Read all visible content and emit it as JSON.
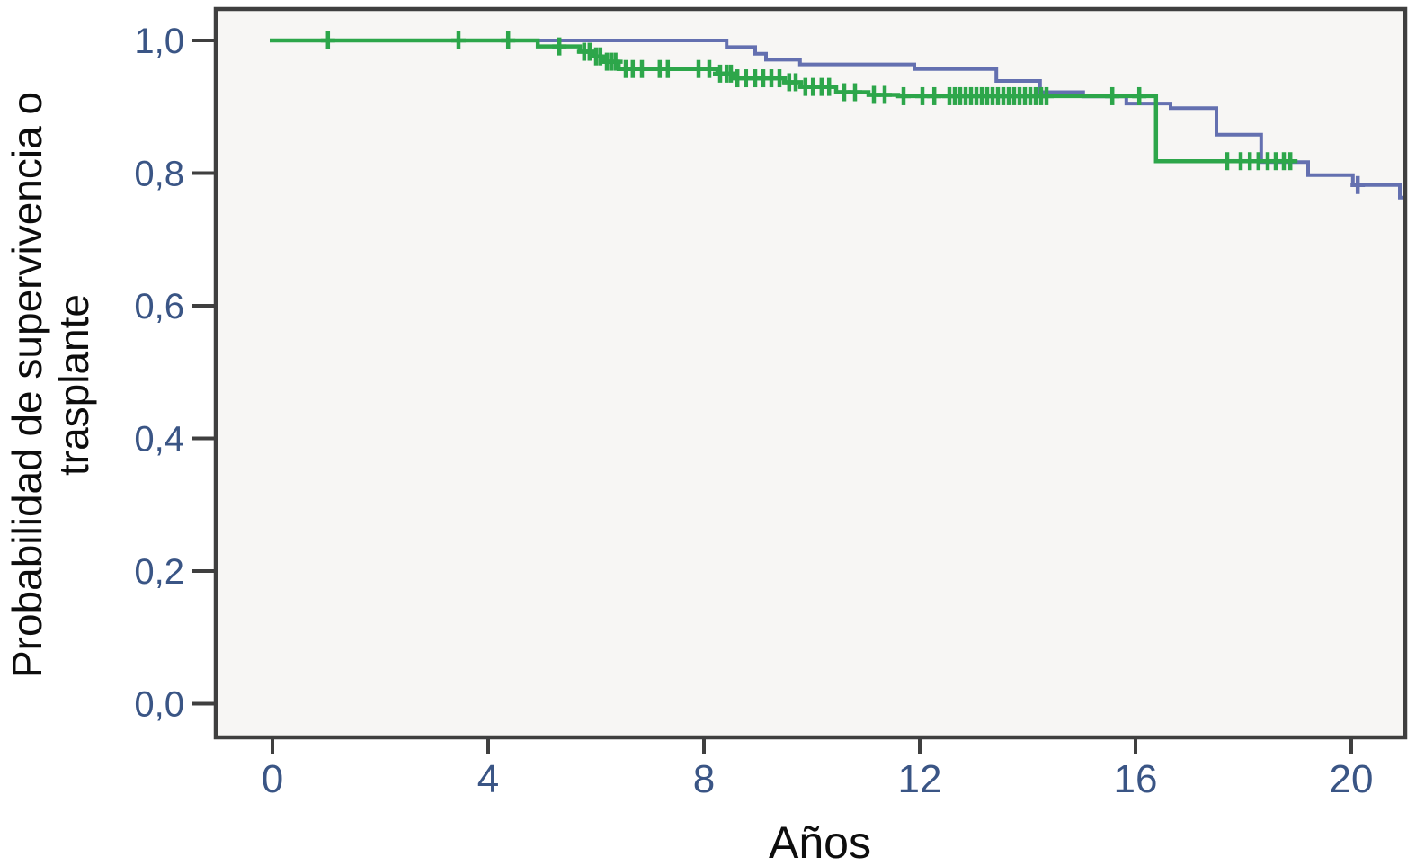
{
  "figure": {
    "background": "#ffffff",
    "plot_background": "#f7f6f4",
    "border_color": "#3f3f3f",
    "tick_label_color": "#3a5585",
    "axis_title_color": "#0d0d0d"
  },
  "axis_titles": {
    "y_line1": "Probabilidad de supervivencia o",
    "y_line2": "trasplante",
    "x": "Años"
  },
  "chart_data": {
    "type": "line",
    "subtype": "kaplan-meier-step-survival",
    "title": "",
    "xlabel": "Años",
    "ylabel": "Probabilidad de supervivencia o trasplante",
    "xlim": [
      -1.08,
      21.06
    ],
    "ylim": [
      -0.05,
      1.05
    ],
    "grid": false,
    "legend": "none",
    "xticks": [
      {
        "v": 0,
        "label": "0"
      },
      {
        "v": 4,
        "label": "4"
      },
      {
        "v": 8,
        "label": "8"
      },
      {
        "v": 12,
        "label": "12"
      },
      {
        "v": 16,
        "label": "16"
      },
      {
        "v": 20,
        "label": "20"
      }
    ],
    "yticks": [
      {
        "v": 0.0,
        "label": "0,0"
      },
      {
        "v": 0.2,
        "label": "0,2"
      },
      {
        "v": 0.4,
        "label": "0,4"
      },
      {
        "v": 0.6,
        "label": "0,6"
      },
      {
        "v": 0.8,
        "label": "0,8"
      },
      {
        "v": 1.0,
        "label": "1,0"
      }
    ],
    "series": [
      {
        "name": "blue-group",
        "color": "#6470b0",
        "stroke_width": 4,
        "end_x": 21.05,
        "steps": [
          [
            -0.05,
            1.0
          ],
          [
            8.42,
            0.99
          ],
          [
            8.95,
            0.98
          ],
          [
            9.15,
            0.971
          ],
          [
            9.78,
            0.964
          ],
          [
            11.9,
            0.957
          ],
          [
            13.42,
            0.939
          ],
          [
            14.23,
            0.922
          ],
          [
            15.03,
            0.9155
          ],
          [
            15.83,
            0.905
          ],
          [
            16.65,
            0.898
          ],
          [
            17.5,
            0.858
          ],
          [
            18.33,
            0.8165
          ],
          [
            19.2,
            0.797
          ],
          [
            20.03,
            0.782
          ],
          [
            20.9,
            0.763
          ]
        ],
        "censors": [
          [
            20.12,
            0.782
          ]
        ]
      },
      {
        "name": "green-group",
        "color": "#2da64a",
        "stroke_width": 4.5,
        "end_x": 18.9,
        "steps": [
          [
            -0.05,
            1.0
          ],
          [
            4.92,
            0.991
          ],
          [
            5.7,
            0.983
          ],
          [
            5.95,
            0.976
          ],
          [
            6.15,
            0.968
          ],
          [
            6.42,
            0.957
          ],
          [
            8.25,
            0.95
          ],
          [
            8.55,
            0.943
          ],
          [
            9.5,
            0.937
          ],
          [
            9.8,
            0.93
          ],
          [
            10.45,
            0.922
          ],
          [
            11.05,
            0.918
          ],
          [
            11.6,
            0.916
          ],
          [
            16.38,
            0.818
          ]
        ],
        "censors": [
          [
            1.03,
            1.0
          ],
          [
            3.45,
            1.0
          ],
          [
            4.37,
            1.0
          ],
          [
            5.32,
            0.991
          ],
          [
            5.78,
            0.983
          ],
          [
            5.88,
            0.983
          ],
          [
            6.0,
            0.976
          ],
          [
            6.08,
            0.976
          ],
          [
            6.2,
            0.968
          ],
          [
            6.28,
            0.968
          ],
          [
            6.36,
            0.968
          ],
          [
            6.55,
            0.957
          ],
          [
            6.68,
            0.957
          ],
          [
            6.85,
            0.957
          ],
          [
            7.18,
            0.957
          ],
          [
            7.33,
            0.957
          ],
          [
            7.9,
            0.957
          ],
          [
            8.1,
            0.957
          ],
          [
            8.3,
            0.95
          ],
          [
            8.42,
            0.95
          ],
          [
            8.5,
            0.95
          ],
          [
            8.62,
            0.943
          ],
          [
            8.78,
            0.943
          ],
          [
            8.95,
            0.943
          ],
          [
            9.1,
            0.943
          ],
          [
            9.25,
            0.943
          ],
          [
            9.4,
            0.943
          ],
          [
            9.58,
            0.937
          ],
          [
            9.7,
            0.937
          ],
          [
            9.88,
            0.93
          ],
          [
            10.02,
            0.93
          ],
          [
            10.18,
            0.93
          ],
          [
            10.32,
            0.93
          ],
          [
            10.6,
            0.922
          ],
          [
            10.8,
            0.922
          ],
          [
            11.15,
            0.918
          ],
          [
            11.35,
            0.918
          ],
          [
            11.7,
            0.916
          ],
          [
            12.05,
            0.916
          ],
          [
            12.27,
            0.916
          ],
          [
            12.55,
            0.916
          ],
          [
            12.65,
            0.916
          ],
          [
            12.75,
            0.916
          ],
          [
            12.85,
            0.916
          ],
          [
            12.95,
            0.916
          ],
          [
            13.05,
            0.916
          ],
          [
            13.15,
            0.916
          ],
          [
            13.25,
            0.916
          ],
          [
            13.35,
            0.916
          ],
          [
            13.45,
            0.916
          ],
          [
            13.55,
            0.916
          ],
          [
            13.65,
            0.916
          ],
          [
            13.75,
            0.916
          ],
          [
            13.85,
            0.916
          ],
          [
            13.95,
            0.916
          ],
          [
            14.05,
            0.916
          ],
          [
            14.15,
            0.916
          ],
          [
            14.25,
            0.916
          ],
          [
            14.35,
            0.916
          ],
          [
            15.57,
            0.916
          ],
          [
            16.07,
            0.916
          ],
          [
            17.7,
            0.818
          ],
          [
            17.95,
            0.818
          ],
          [
            18.12,
            0.818
          ],
          [
            18.28,
            0.818
          ],
          [
            18.45,
            0.818
          ],
          [
            18.6,
            0.818
          ],
          [
            18.75,
            0.818
          ],
          [
            18.87,
            0.818
          ]
        ]
      }
    ]
  }
}
